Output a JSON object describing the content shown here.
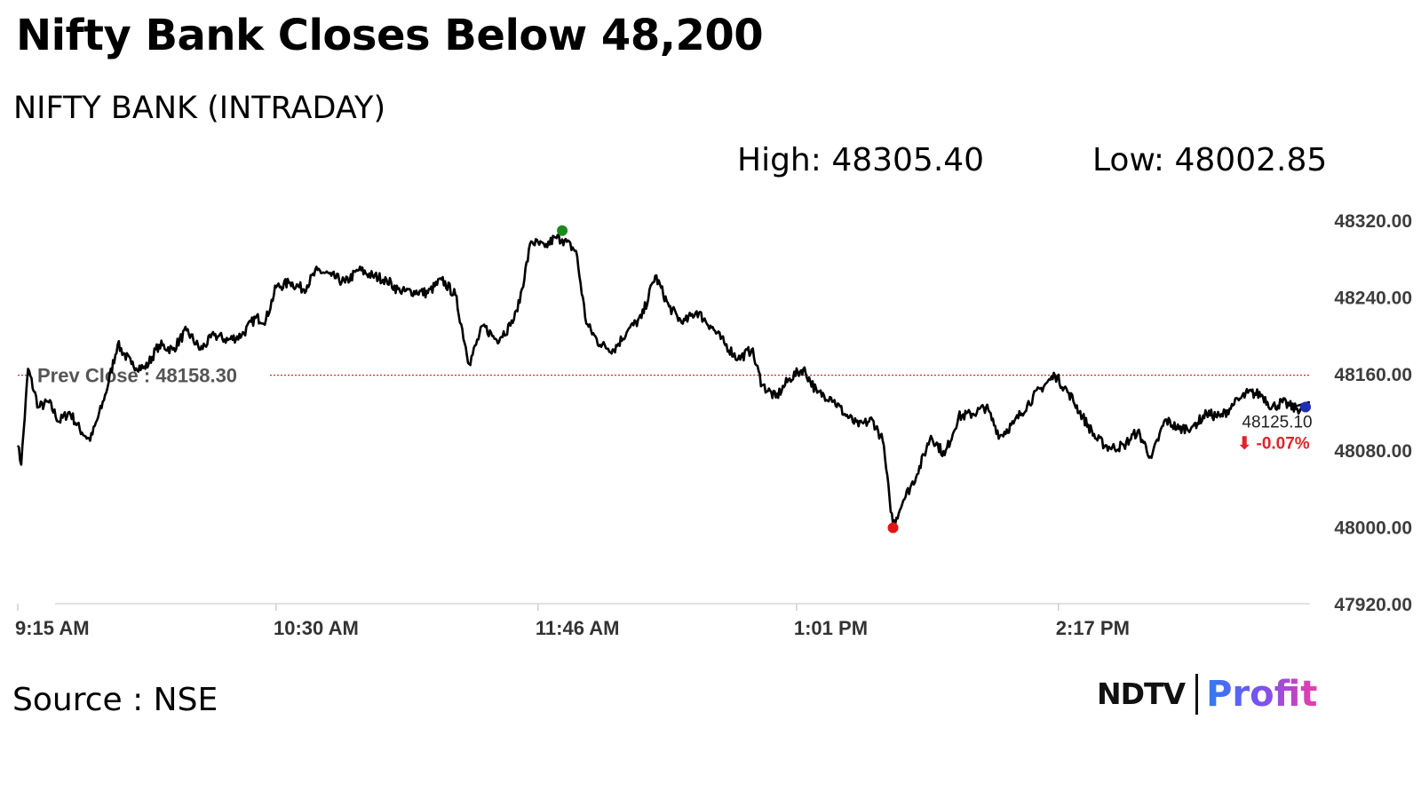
{
  "header": {
    "title": "Nifty Bank Closes Below 48,200",
    "subtitle": "NIFTY BANK (INTRADAY)",
    "high_text": "High: 48305.40",
    "low_text": "Low: 48002.85"
  },
  "footer": {
    "source": "Source : NSE",
    "logo_left": "NDTV",
    "logo_right": "Profit"
  },
  "chart_data": {
    "type": "line",
    "title": "NIFTY BANK (INTRADAY)",
    "x_ticks": [
      "9:15 AM",
      "10:30 AM",
      "11:46 AM",
      "1:01 PM",
      "2:17 PM"
    ],
    "y_ticks": [
      "48320.00",
      "48240.00",
      "48160.00",
      "48080.00",
      "48000.00",
      "47920.00"
    ],
    "ylim": [
      47920,
      48320
    ],
    "xlim": [
      "9:15 AM",
      "3:30 PM"
    ],
    "grid": false,
    "legend": "none",
    "prev_close": 48158.3,
    "prev_close_label": "Prev Close : 48158.30",
    "high": 48305.4,
    "high_time": "11:53 AM",
    "low": 48002.85,
    "low_time": "1:29 PM",
    "last": 48125.1,
    "last_label": "48125.10",
    "change_label": "⬇ -0.07%",
    "series": [
      {
        "x": [
          "9:15",
          "9:16",
          "9:18",
          "9:21",
          "9:24",
          "9:27",
          "9:30",
          "9:33",
          "9:36",
          "9:40",
          "9:44",
          "9:48",
          "9:52",
          "9:56",
          "10:00",
          "10:04",
          "10:08",
          "10:12",
          "10:16",
          "10:20",
          "10:24",
          "10:27",
          "10:30",
          "10:34",
          "10:38",
          "10:42",
          "10:46",
          "10:50",
          "10:54",
          "10:58",
          "11:02",
          "11:06",
          "11:10",
          "11:14",
          "11:18",
          "11:22",
          "11:26",
          "11:30",
          "11:34",
          "11:38",
          "11:40",
          "11:44",
          "11:48",
          "11:51",
          "11:53",
          "11:57",
          "12:00",
          "12:04",
          "12:08",
          "12:12",
          "12:16",
          "12:20",
          "12:24",
          "12:28",
          "12:32",
          "12:36",
          "12:40",
          "12:44",
          "12:48",
          "12:51",
          "12:55",
          "12:59",
          "13:03",
          "13:07",
          "13:11",
          "13:15",
          "13:19",
          "13:23",
          "13:26",
          "13:28",
          "13:29",
          "13:32",
          "13:36",
          "13:40",
          "13:44",
          "13:48",
          "13:52",
          "13:56",
          "14:00",
          "14:04",
          "14:08",
          "14:12",
          "14:16",
          "14:20",
          "14:24",
          "14:28",
          "14:32",
          "14:36",
          "14:40",
          "14:44",
          "14:48",
          "14:52",
          "14:56",
          "15:00",
          "15:04",
          "15:08",
          "15:12",
          "15:16",
          "15:19",
          "15:22",
          "15:26",
          "15:30"
        ],
        "values": [
          48085,
          48065,
          48165,
          48125,
          48130,
          48110,
          48120,
          48102,
          48090,
          48132,
          48190,
          48170,
          48165,
          48190,
          48185,
          48205,
          48185,
          48200,
          48195,
          48200,
          48218,
          48216,
          48250,
          48255,
          48248,
          48268,
          48262,
          48255,
          48268,
          48262,
          48258,
          48245,
          48246,
          48244,
          48258,
          48242,
          48170,
          48210,
          48195,
          48210,
          48225,
          48298,
          48292,
          48302,
          48300,
          48288,
          48212,
          48190,
          48185,
          48205,
          48218,
          48262,
          48230,
          48212,
          48225,
          48210,
          48192,
          48175,
          48185,
          48148,
          48135,
          48155,
          48165,
          48140,
          48135,
          48118,
          48105,
          48112,
          48090,
          48030,
          48002,
          48028,
          48055,
          48095,
          48075,
          48115,
          48118,
          48125,
          48095,
          48108,
          48128,
          48145,
          48158,
          48140,
          48115,
          48092,
          48082,
          48085,
          48100,
          48072,
          48112,
          48102,
          48105,
          48118,
          48115,
          48128,
          48140,
          48138,
          48125,
          48130,
          48123,
          48125
        ]
      }
    ]
  }
}
